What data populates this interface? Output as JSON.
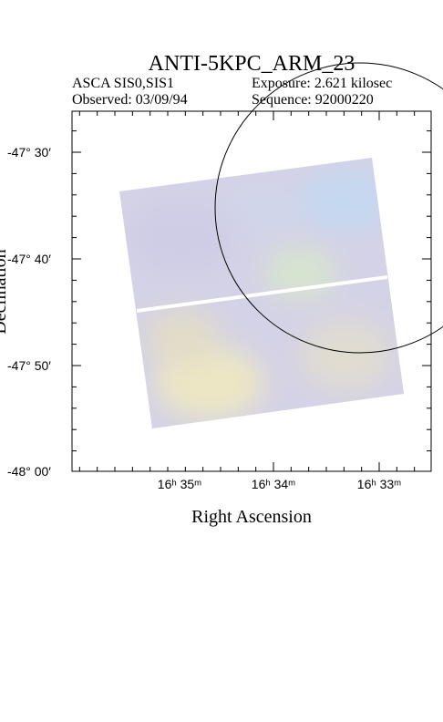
{
  "header": {
    "title": "ANTI-5KPC_ARM_23",
    "instrument": "ASCA SIS0,SIS1",
    "observed": "Observed: 03/09/94",
    "exposure": "Exposure: 2.621 kilosec",
    "sequence": "Sequence: 92000220"
  },
  "axes": {
    "y_label": "Declination",
    "x_label": "Right Ascension",
    "y_ticks": [
      "-47° 30′",
      "-47° 40′",
      "-47° 50′",
      "-48° 00′"
    ],
    "x_ticks": [
      "16ʰ 35ᵐ",
      "16ʰ 34ᵐ",
      "16ʰ 33ᵐ"
    ]
  }
}
